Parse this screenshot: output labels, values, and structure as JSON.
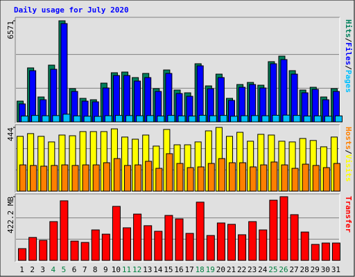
{
  "title": "Daily usage for July 2020",
  "chart_data": [
    {
      "type": "bar",
      "ylim": [
        0,
        6571
      ],
      "yticks": [
        6571
      ],
      "grid": true,
      "legend_separator": "/",
      "series": [
        {
          "name": "Hits",
          "color": "#00805c",
          "values": [
            1350,
            3510,
            1620,
            3690,
            6571,
            2160,
            1530,
            1440,
            2520,
            3195,
            3240,
            2880,
            3150,
            2160,
            3375,
            2070,
            1890,
            3780,
            2340,
            3105,
            1530,
            2430,
            2565,
            2385,
            3915,
            4275,
            3330,
            2070,
            2250,
            1620,
            2160
          ]
        },
        {
          "name": "Files",
          "color": "#0000ff",
          "values": [
            1170,
            3330,
            1440,
            3420,
            6390,
            1980,
            1350,
            1305,
            2205,
            3015,
            3015,
            2655,
            2880,
            1980,
            3150,
            1845,
            1665,
            3645,
            2160,
            2880,
            1395,
            2250,
            2430,
            2205,
            3780,
            4050,
            3105,
            1890,
            2115,
            1440,
            1980
          ]
        },
        {
          "name": "Pages",
          "color": "#00c0ff",
          "values": [
            380,
            420,
            400,
            410,
            500,
            390,
            370,
            360,
            400,
            420,
            410,
            400,
            410,
            380,
            420,
            390,
            380,
            430,
            400,
            420,
            370,
            400,
            410,
            400,
            430,
            440,
            420,
            380,
            390,
            370,
            390
          ]
        }
      ]
    },
    {
      "type": "bar",
      "ylim": [
        0,
        444
      ],
      "yticks": [
        444
      ],
      "grid": true,
      "legend_separator": "/",
      "series": [
        {
          "name": "Hosts",
          "color": "#ff8000",
          "values": [
            183,
            179,
            174,
            179,
            183,
            179,
            183,
            183,
            198,
            227,
            179,
            183,
            208,
            159,
            261,
            193,
            164,
            169,
            193,
            227,
            198,
            198,
            169,
            183,
            203,
            183,
            159,
            188,
            179,
            164,
            193
          ]
        },
        {
          "name": "Visits",
          "color": "#ffff00",
          "values": [
            382,
            401,
            382,
            343,
            391,
            386,
            415,
            415,
            415,
            434,
            377,
            362,
            391,
            314,
            430,
            323,
            323,
            343,
            420,
            444,
            382,
            410,
            348,
            396,
            391,
            348,
            343,
            367,
            353,
            309,
            377
          ]
        }
      ]
    },
    {
      "type": "bar",
      "ylim": [
        0,
        422.2
      ],
      "yticks": [
        {
          "value": 422.2,
          "label": "422.2 MB"
        }
      ],
      "grid": true,
      "categories": [
        "1",
        "2",
        "3",
        "4",
        "5",
        "6",
        "7",
        "8",
        "9",
        "10",
        "11",
        "12",
        "13",
        "14",
        "15",
        "16",
        "17",
        "18",
        "19",
        "20",
        "21",
        "22",
        "23",
        "24",
        "25",
        "26",
        "27",
        "28",
        "29",
        "30",
        "31"
      ],
      "category_colors": [
        "#000000",
        "#000000",
        "#000000",
        "#008040",
        "#008040",
        "#000000",
        "#000000",
        "#000000",
        "#000000",
        "#000000",
        "#008040",
        "#008040",
        "#000000",
        "#000000",
        "#000000",
        "#000000",
        "#000000",
        "#008040",
        "#008040",
        "#000000",
        "#000000",
        "#000000",
        "#000000",
        "#000000",
        "#008040",
        "#008040",
        "#000000",
        "#000000",
        "#000000",
        "#000000",
        "#000000"
      ],
      "series": [
        {
          "name": "Transfer",
          "color": "#ff0000",
          "values": [
            78,
            152,
            133,
            257,
            395,
            128,
            119,
            202,
            174,
            358,
            216,
            307,
            230,
            193,
            298,
            275,
            179,
            386,
            165,
            248,
            239,
            170,
            257,
            202,
            399,
            422.2,
            303,
            188,
            106,
            115,
            115
          ]
        }
      ]
    }
  ]
}
